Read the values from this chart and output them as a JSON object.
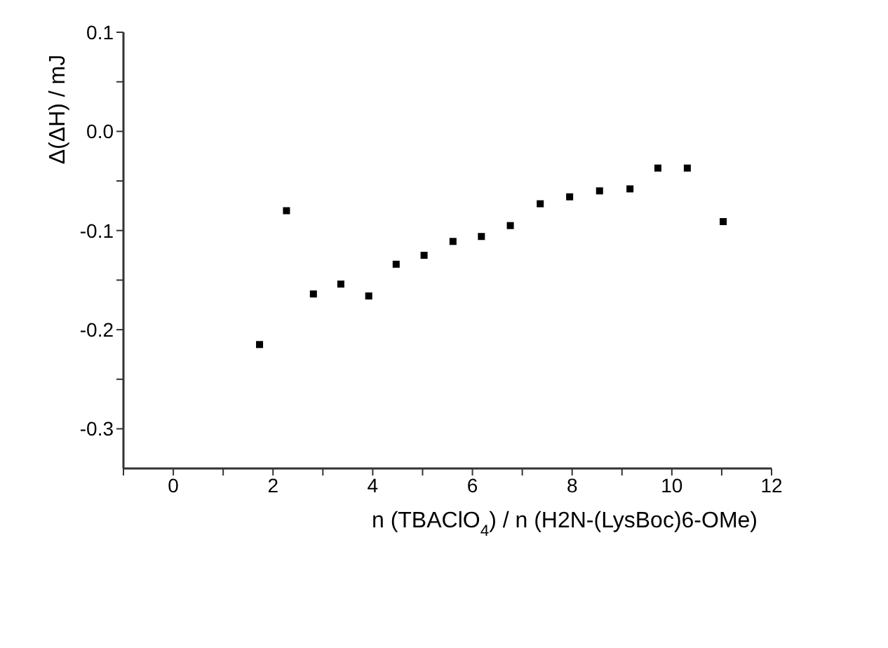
{
  "chart_data": {
    "type": "scatter",
    "xlabel": "n (TBAClO$_{4}$) / n (H2N-(LysBoc)6-OMe)",
    "ylabel": "Δ(ΔH) / mJ",
    "x": [
      1.73,
      2.27,
      2.81,
      3.36,
      3.92,
      4.47,
      5.03,
      5.61,
      6.18,
      6.76,
      7.36,
      7.95,
      8.55,
      9.16,
      9.72,
      10.31,
      11.03
    ],
    "series": [
      {
        "color": "#000000",
        "values": [
          -0.215,
          -0.08,
          -0.164,
          -0.154,
          -0.166,
          -0.134,
          -0.125,
          -0.111,
          -0.106,
          -0.095,
          -0.073,
          -0.066,
          -0.06,
          -0.058,
          -0.037,
          -0.037,
          -0.091
        ]
      }
    ],
    "xlim": [
      -1,
      12
    ],
    "xticks": [
      {
        "value": -1,
        "label": null
      },
      0,
      {
        "value": 1,
        "label": null
      },
      2,
      {
        "value": 3,
        "label": null
      },
      4,
      {
        "value": 5,
        "label": null
      },
      6,
      {
        "value": 7,
        "label": null
      },
      8,
      {
        "value": 9,
        "label": null
      },
      10,
      {
        "value": 11,
        "label": null
      },
      12
    ],
    "ylim": [
      -0.34,
      0.1
    ],
    "yticks": [
      {
        "value": -0.3,
        "label": "-0.3"
      },
      {
        "value": -0.25,
        "label": null
      },
      {
        "value": -0.2,
        "label": "-0.2"
      },
      {
        "value": -0.15,
        "label": null
      },
      {
        "value": -0.1,
        "label": "-0.1"
      },
      {
        "value": -0.05,
        "label": null
      },
      {
        "value": 0,
        "label": "0.0"
      },
      {
        "value": 0.05,
        "label": null
      },
      {
        "value": 0.1,
        "label": "0.1"
      }
    ],
    "grid": false,
    "legend": false,
    "marker": "square"
  }
}
